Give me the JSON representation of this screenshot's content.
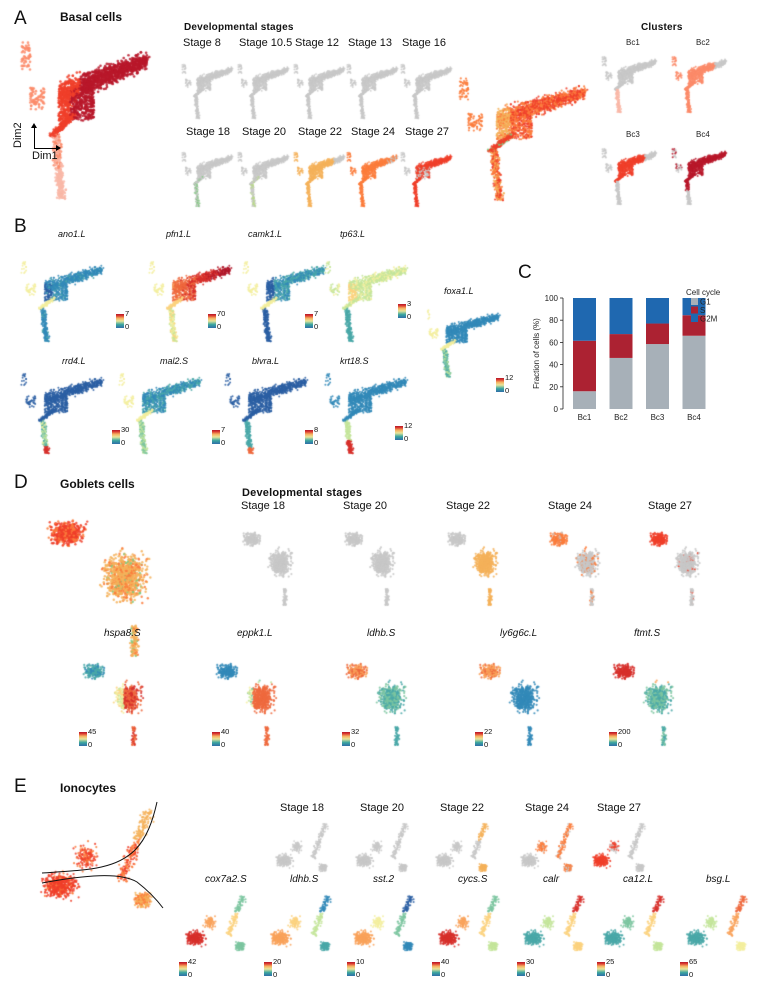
{
  "panels": {
    "A": {
      "letter": "A",
      "title": "Basal cells",
      "dev_stages_title": "Developmental stages",
      "axis": {
        "y": "Dim2",
        "x": "Dim1"
      },
      "stages_row1": [
        "Stage 8",
        "Stage 10.5",
        "Stage 12",
        "Stage 13",
        "Stage 16"
      ],
      "stages_row2": [
        "Stage 18",
        "Stage 20",
        "Stage 22",
        "Stage 24",
        "Stage 27"
      ],
      "clusters_title": "Clusters",
      "clusters": [
        "Bc1",
        "Bc2",
        "Bc3",
        "Bc4"
      ]
    },
    "B": {
      "letter": "B",
      "genes": [
        {
          "name": "ano1.L",
          "max": "7",
          "min": "0"
        },
        {
          "name": "pfn1.L",
          "max": "70",
          "min": "0"
        },
        {
          "name": "camk1.L",
          "max": "7",
          "min": "0"
        },
        {
          "name": "tp63.L",
          "max": "3",
          "min": "0"
        },
        {
          "name": "foxa1.L",
          "max": "12",
          "min": "0"
        },
        {
          "name": "rrd4.L",
          "max": "30",
          "min": "0"
        },
        {
          "name": "mal2.S",
          "max": "7",
          "min": "0"
        },
        {
          "name": "blvra.L",
          "max": "8",
          "min": "0"
        },
        {
          "name": "krt18.S",
          "max": "12",
          "min": "0"
        }
      ]
    },
    "C": {
      "letter": "C"
    },
    "D": {
      "letter": "D",
      "title": "Goblets cells",
      "dev_stages_title": "Developmental stages",
      "stages": [
        "Stage 18",
        "Stage 20",
        "Stage 22",
        "Stage 24",
        "Stage 27"
      ],
      "genes": [
        {
          "name": "hspa8.S",
          "max": "45",
          "min": "0"
        },
        {
          "name": "eppk1.L",
          "max": "40",
          "min": "0"
        },
        {
          "name": "ldhb.S",
          "max": "32",
          "min": "0"
        },
        {
          "name": "ly6g6c.L",
          "max": "22",
          "min": "0"
        },
        {
          "name": "ftmt.S",
          "max": "200",
          "min": "0"
        }
      ]
    },
    "E": {
      "letter": "E",
      "title": "Ionocytes",
      "stages": [
        "Stage 18",
        "Stage 20",
        "Stage 22",
        "Stage 24",
        "Stage 27"
      ],
      "genes": [
        {
          "name": "cox7a2.S",
          "max": "42",
          "min": "0"
        },
        {
          "name": "ldhb.S",
          "max": "20",
          "min": "0"
        },
        {
          "name": "sst.2",
          "max": "10",
          "min": "0"
        },
        {
          "name": "cycs.S",
          "max": "40",
          "min": "0"
        },
        {
          "name": "calr",
          "max": "30",
          "min": "0"
        },
        {
          "name": "ca12.L",
          "max": "25",
          "min": "0"
        },
        {
          "name": "bsg.L",
          "max": "65",
          "min": "0"
        }
      ]
    }
  },
  "colors": {
    "stage18": "#7fc97f",
    "stage20": "#b8d98a",
    "stage22": "#f5b25a",
    "stage24": "#fb7d3c",
    "stage27": "#f0402a",
    "grey": "#c8c8c8",
    "bc1": "#f9b8a8",
    "bc2": "#fb8b6a",
    "bc3": "#f0402a",
    "bc4": "#b8182a",
    "g1": "#a7b0b8",
    "s": "#ac2232",
    "g2m": "#1f68b0"
  },
  "chart_data": {
    "type": "bar",
    "stacked": true,
    "title": "",
    "categories": [
      "Bc1",
      "Bc2",
      "Bc3",
      "Bc4"
    ],
    "series": [
      {
        "name": "G1",
        "values": [
          16,
          46,
          58.5,
          66
        ]
      },
      {
        "name": "S",
        "values": [
          45.5,
          21.5,
          18.5,
          18.5
        ]
      },
      {
        "name": "G2M",
        "values": [
          38.5,
          32.5,
          23,
          15.5
        ]
      }
    ],
    "xlabel": "",
    "ylabel": "Fraction of cells (%)",
    "ylim": [
      0,
      100
    ],
    "yticks": [
      0,
      20,
      40,
      60,
      80,
      100
    ],
    "legend_title": "Cell cycle",
    "legend_position": "right",
    "colors": {
      "G1": "#a7b0b8",
      "S": "#ac2232",
      "G2M": "#1f68b0"
    }
  }
}
